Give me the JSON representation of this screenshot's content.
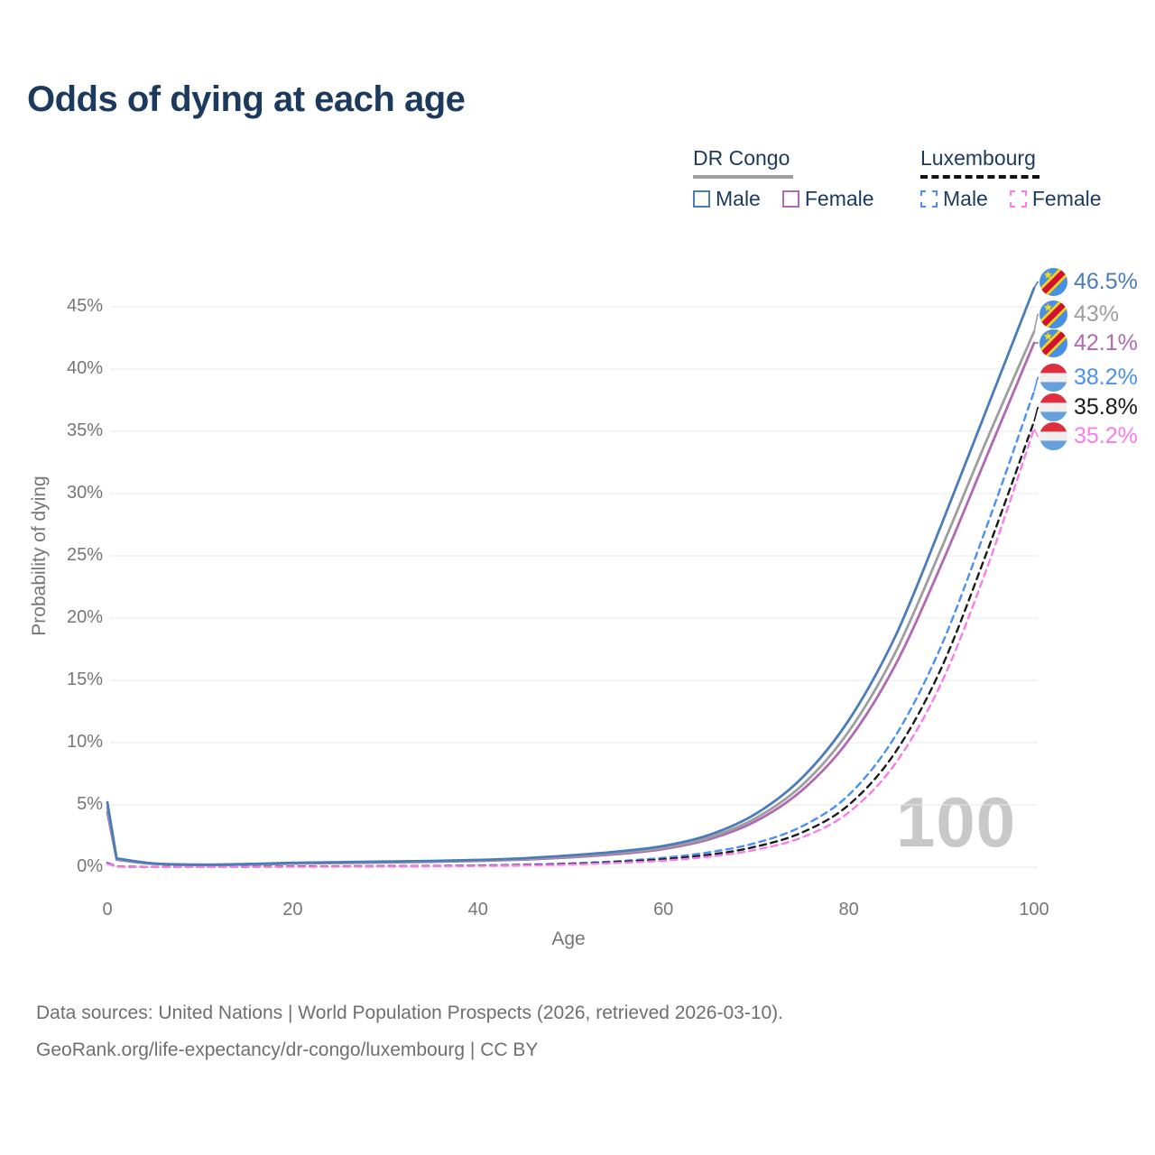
{
  "title": "Odds of dying at each age",
  "watermark": "100",
  "footer": {
    "line1": "Data sources: United Nations | World Population Prospects (2026, retrieved 2026-03-10).",
    "line2": "GeoRank.org/life-expectancy/dr-congo/luxembourg | CC BY"
  },
  "legend": {
    "groups": [
      {
        "label": "DR Congo",
        "underline_color": "#9e9e9e",
        "underline_style": "solid",
        "items": [
          {
            "label": "Male",
            "color": "#4a7cba",
            "dashed": false
          },
          {
            "label": "Female",
            "color": "#b069b2",
            "dashed": false
          }
        ]
      },
      {
        "label": "Luxembourg",
        "underline_color": "#111111",
        "underline_style": "dashed",
        "items": [
          {
            "label": "Male",
            "color": "#4b8ff2",
            "dashed": true
          },
          {
            "label": "Female",
            "color": "#fb7ce8",
            "dashed": true
          }
        ]
      }
    ]
  },
  "chart_data": {
    "type": "line",
    "title": "Odds of dying at each age",
    "xlabel": "Age",
    "ylabel": "Probability of dying",
    "xlim": [
      0,
      100
    ],
    "ylim": [
      0,
      47
    ],
    "grid": "horizontal",
    "x_tick_values": [
      0,
      20,
      40,
      60,
      80,
      100
    ],
    "x_tick_labels": [
      "0",
      "20",
      "40",
      "60",
      "80",
      "100"
    ],
    "y_tick_values": [
      0,
      5,
      10,
      15,
      20,
      25,
      30,
      35,
      40,
      45
    ],
    "y_tick_labels": [
      "0%",
      "5%",
      "10%",
      "15%",
      "20%",
      "25%",
      "30%",
      "35%",
      "40%",
      "45%"
    ],
    "x": [
      0,
      1,
      5,
      10,
      15,
      20,
      25,
      30,
      35,
      40,
      45,
      50,
      55,
      60,
      65,
      70,
      75,
      80,
      85,
      90,
      95,
      100
    ],
    "series": [
      {
        "name": "DR Congo – Female",
        "country": "DR Congo",
        "sex": "female",
        "color": "#b069b2",
        "dashed": false,
        "flag": "cd",
        "values": [
          4.4,
          0.6,
          0.26,
          0.17,
          0.2,
          0.28,
          0.33,
          0.38,
          0.43,
          0.5,
          0.61,
          0.79,
          1.05,
          1.45,
          2.25,
          3.7,
          6.2,
          10.2,
          16.2,
          24.3,
          33.2,
          42.1
        ],
        "end_label": "42.1%",
        "end_label_color": "#b069b2",
        "label_pos_pct": 42.1
      },
      {
        "name": "DR Congo – Overall",
        "country": "DR Congo",
        "sex": "all",
        "color": "#9e9e9e",
        "dashed": false,
        "flag": "cd",
        "values": [
          4.8,
          0.65,
          0.28,
          0.18,
          0.22,
          0.31,
          0.36,
          0.41,
          0.46,
          0.53,
          0.66,
          0.86,
          1.15,
          1.55,
          2.4,
          3.95,
          6.6,
          10.9,
          17.2,
          25.6,
          34.5,
          43.0
        ],
        "end_label": "43%",
        "end_label_color": "#9e9e9e",
        "label_pos_pct": 44.4
      },
      {
        "name": "DR Congo – Male",
        "country": "DR Congo",
        "sex": "male",
        "color": "#4a7cba",
        "dashed": false,
        "flag": "cd",
        "values": [
          5.2,
          0.7,
          0.3,
          0.2,
          0.25,
          0.35,
          0.4,
          0.45,
          0.5,
          0.58,
          0.72,
          0.95,
          1.25,
          1.7,
          2.6,
          4.3,
          7.2,
          11.8,
          18.5,
          27.5,
          37.0,
          46.5
        ],
        "end_label": "46.5%",
        "end_label_color": "#4a7cba",
        "label_pos_pct": 47.0
      },
      {
        "name": "Luxembourg – Male",
        "country": "Luxembourg",
        "sex": "male",
        "color": "#4b8ff2",
        "dashed": true,
        "flag": "lu",
        "values": [
          0.35,
          0.06,
          0.02,
          0.02,
          0.04,
          0.06,
          0.07,
          0.08,
          0.1,
          0.14,
          0.2,
          0.3,
          0.48,
          0.75,
          1.2,
          1.95,
          3.3,
          5.8,
          10.5,
          17.8,
          27.6,
          38.2
        ],
        "end_label": "38.2%",
        "end_label_color": "#4b8ff2",
        "label_pos_pct": 39.3
      },
      {
        "name": "Luxembourg – Overall",
        "country": "Luxembourg",
        "sex": "all",
        "color": "#1a1a1a",
        "dashed": true,
        "flag": "lu",
        "values": [
          0.3,
          0.05,
          0.02,
          0.02,
          0.03,
          0.05,
          0.06,
          0.07,
          0.09,
          0.12,
          0.17,
          0.26,
          0.41,
          0.63,
          1.0,
          1.65,
          2.8,
          5.0,
          9.2,
          16.0,
          25.5,
          35.8
        ],
        "end_label": "35.8%",
        "end_label_color": "#1a1a1a",
        "label_pos_pct": 36.9
      },
      {
        "name": "Luxembourg – Female",
        "country": "Luxembourg",
        "sex": "female",
        "color": "#fb7ce8",
        "dashed": true,
        "flag": "lu",
        "values": [
          0.27,
          0.04,
          0.015,
          0.015,
          0.02,
          0.03,
          0.04,
          0.05,
          0.07,
          0.1,
          0.14,
          0.21,
          0.34,
          0.52,
          0.85,
          1.4,
          2.4,
          4.4,
          8.3,
          14.8,
          24.2,
          35.2
        ],
        "end_label": "35.2%",
        "end_label_color": "#fb7ce8",
        "label_pos_pct": 34.6
      }
    ],
    "flag_colors": {
      "cd": {
        "field": "#4a90e2",
        "band_outer": "#f7d618",
        "band_inner": "#d21034",
        "star": "#f7d618"
      },
      "lu": {
        "top": "#dd2f3e",
        "middle": "#efefef",
        "bottom": "#66a1d9"
      }
    }
  }
}
